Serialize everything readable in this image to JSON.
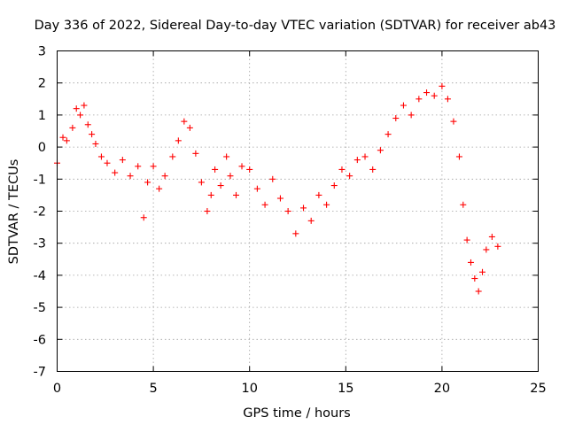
{
  "chart_data": {
    "type": "scatter",
    "title": "Day 336 of 2022, Sidereal Day-to-day VTEC variation (SDTVAR) for receiver ab43",
    "xlabel": "GPS time / hours",
    "ylabel": "SDTVAR / TECUs",
    "xlim": [
      0,
      25
    ],
    "ylim": [
      -7,
      3
    ],
    "xticks": [
      0,
      5,
      10,
      15,
      20,
      25
    ],
    "yticks": [
      -7,
      -6,
      -5,
      -4,
      -3,
      -2,
      -1,
      0,
      1,
      2,
      3
    ],
    "xtick_labels": [
      "0",
      "5",
      "10",
      "15",
      "20",
      "25"
    ],
    "ytick_labels": [
      "-7",
      "-6",
      "-5",
      "-4",
      "-3",
      "-2",
      "-1",
      "0",
      "1",
      "2",
      "3"
    ],
    "grid": true,
    "marker": "+",
    "series": [
      {
        "name": "SDTVAR",
        "color": "#ff0000",
        "x": [
          0.0,
          0.3,
          0.5,
          0.8,
          1.0,
          1.2,
          1.4,
          1.6,
          1.8,
          2.0,
          2.3,
          2.6,
          3.0,
          3.4,
          3.8,
          4.2,
          4.5,
          4.7,
          5.0,
          5.3,
          5.6,
          6.0,
          6.3,
          6.6,
          6.9,
          7.2,
          7.5,
          7.8,
          8.0,
          8.2,
          8.5,
          8.8,
          9.0,
          9.3,
          9.6,
          10.0,
          10.4,
          10.8,
          11.2,
          11.6,
          12.0,
          12.4,
          12.8,
          13.2,
          13.6,
          14.0,
          14.4,
          14.8,
          15.2,
          15.6,
          16.0,
          16.4,
          16.8,
          17.2,
          17.6,
          18.0,
          18.4,
          18.8,
          19.2,
          19.6,
          20.0,
          20.3,
          20.6,
          20.9,
          21.1,
          21.3,
          21.5,
          21.7,
          21.9,
          22.1,
          22.3,
          22.6,
          22.9
        ],
        "y": [
          -0.5,
          0.3,
          0.2,
          0.6,
          1.2,
          1.0,
          1.3,
          0.7,
          0.4,
          0.1,
          -0.3,
          -0.5,
          -0.8,
          -0.4,
          -0.9,
          -0.6,
          -2.2,
          -1.1,
          -0.6,
          -1.3,
          -0.9,
          -0.3,
          0.2,
          0.8,
          0.6,
          -0.2,
          -1.1,
          -2.0,
          -1.5,
          -0.7,
          -1.2,
          -0.3,
          -0.9,
          -1.5,
          -0.6,
          -0.7,
          -1.3,
          -1.8,
          -1.0,
          -1.6,
          -2.0,
          -2.7,
          -1.9,
          -2.3,
          -1.5,
          -1.8,
          -1.2,
          -0.7,
          -0.9,
          -0.4,
          -0.3,
          -0.7,
          -0.1,
          0.4,
          0.9,
          1.3,
          1.0,
          1.5,
          1.7,
          1.6,
          1.9,
          1.5,
          0.8,
          -0.3,
          -1.8,
          -2.9,
          -3.6,
          -4.1,
          -4.5,
          -3.9,
          -3.2,
          -2.8,
          -3.1
        ]
      }
    ]
  }
}
